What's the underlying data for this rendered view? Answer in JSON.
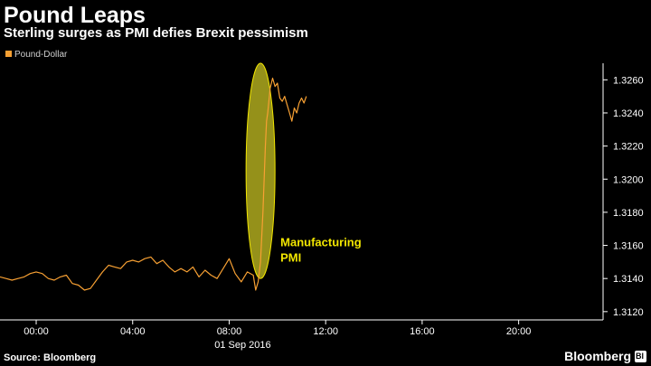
{
  "header": {
    "title": "Pound Leaps",
    "subtitle": "Sterling surges as PMI defies Brexit pessimism"
  },
  "footer": {
    "source": "Source: Bloomberg",
    "brand": "Bloomberg"
  },
  "colors": {
    "series": "#f7a033",
    "highlight_fill": "#c7c223",
    "annotation": "#f2e600",
    "axis": "#ffffff"
  },
  "chart_data": {
    "type": "line",
    "title": "Pound Leaps",
    "subtitle": "Sterling surges as PMI defies Brexit pessimism",
    "x_axis_label": "01 Sep 2016",
    "x_ticks": [
      "00:00",
      "04:00",
      "08:00",
      "12:00",
      "16:00",
      "20:00"
    ],
    "x_tick_hours": [
      0,
      4,
      8,
      12,
      16,
      20
    ],
    "xlim_hours": [
      -1.5,
      23.5
    ],
    "y_ticks": [
      1.312,
      1.314,
      1.316,
      1.318,
      1.32,
      1.322,
      1.324,
      1.326
    ],
    "y_tick_labels": [
      "1.3120",
      "1.3140",
      "1.3160",
      "1.3180",
      "1.3200",
      "1.3220",
      "1.3240",
      "1.3260"
    ],
    "ylim": [
      1.3115,
      1.327
    ],
    "y_axis_position": "right",
    "legend": {
      "position": "top-left",
      "entries": [
        "Pound-Dollar"
      ]
    },
    "grid": false,
    "series": [
      {
        "name": "Pound-Dollar",
        "x_hours": [
          -1.5,
          -1.25,
          -1.0,
          -0.75,
          -0.5,
          -0.25,
          0.0,
          0.25,
          0.5,
          0.75,
          1.0,
          1.25,
          1.5,
          1.75,
          2.0,
          2.25,
          2.5,
          2.75,
          3.0,
          3.25,
          3.5,
          3.75,
          4.0,
          4.25,
          4.5,
          4.75,
          5.0,
          5.25,
          5.5,
          5.75,
          6.0,
          6.25,
          6.5,
          6.75,
          7.0,
          7.25,
          7.5,
          7.75,
          8.0,
          8.25,
          8.5,
          8.75,
          9.0,
          9.1,
          9.2,
          9.3,
          9.4,
          9.5,
          9.55,
          9.6,
          9.7,
          9.8,
          9.9,
          10.0,
          10.1,
          10.2,
          10.3,
          10.4,
          10.5,
          10.6,
          10.7,
          10.8,
          10.9,
          11.0,
          11.1,
          11.2
        ],
        "values": [
          1.3141,
          1.314,
          1.3139,
          1.314,
          1.3141,
          1.3143,
          1.3144,
          1.3143,
          1.314,
          1.3139,
          1.3141,
          1.3142,
          1.3137,
          1.3136,
          1.3133,
          1.3134,
          1.3139,
          1.3144,
          1.3148,
          1.3147,
          1.3146,
          1.315,
          1.3151,
          1.315,
          1.3152,
          1.3153,
          1.3149,
          1.3151,
          1.3147,
          1.3144,
          1.3146,
          1.3144,
          1.3147,
          1.3141,
          1.3145,
          1.3142,
          1.314,
          1.3146,
          1.3152,
          1.3143,
          1.3138,
          1.3144,
          1.3142,
          1.3133,
          1.3138,
          1.315,
          1.318,
          1.322,
          1.3235,
          1.324,
          1.3255,
          1.3261,
          1.3256,
          1.3258,
          1.3249,
          1.3247,
          1.325,
          1.3245,
          1.324,
          1.3235,
          1.3243,
          1.324,
          1.3246,
          1.3249,
          1.3246,
          1.325
        ]
      }
    ],
    "annotations": [
      {
        "text_lines": [
          "Manufacturing",
          "PMI"
        ],
        "x_hours": 9.3,
        "y_range": [
          1.314,
          1.327
        ],
        "shape": "ellipse"
      }
    ]
  }
}
